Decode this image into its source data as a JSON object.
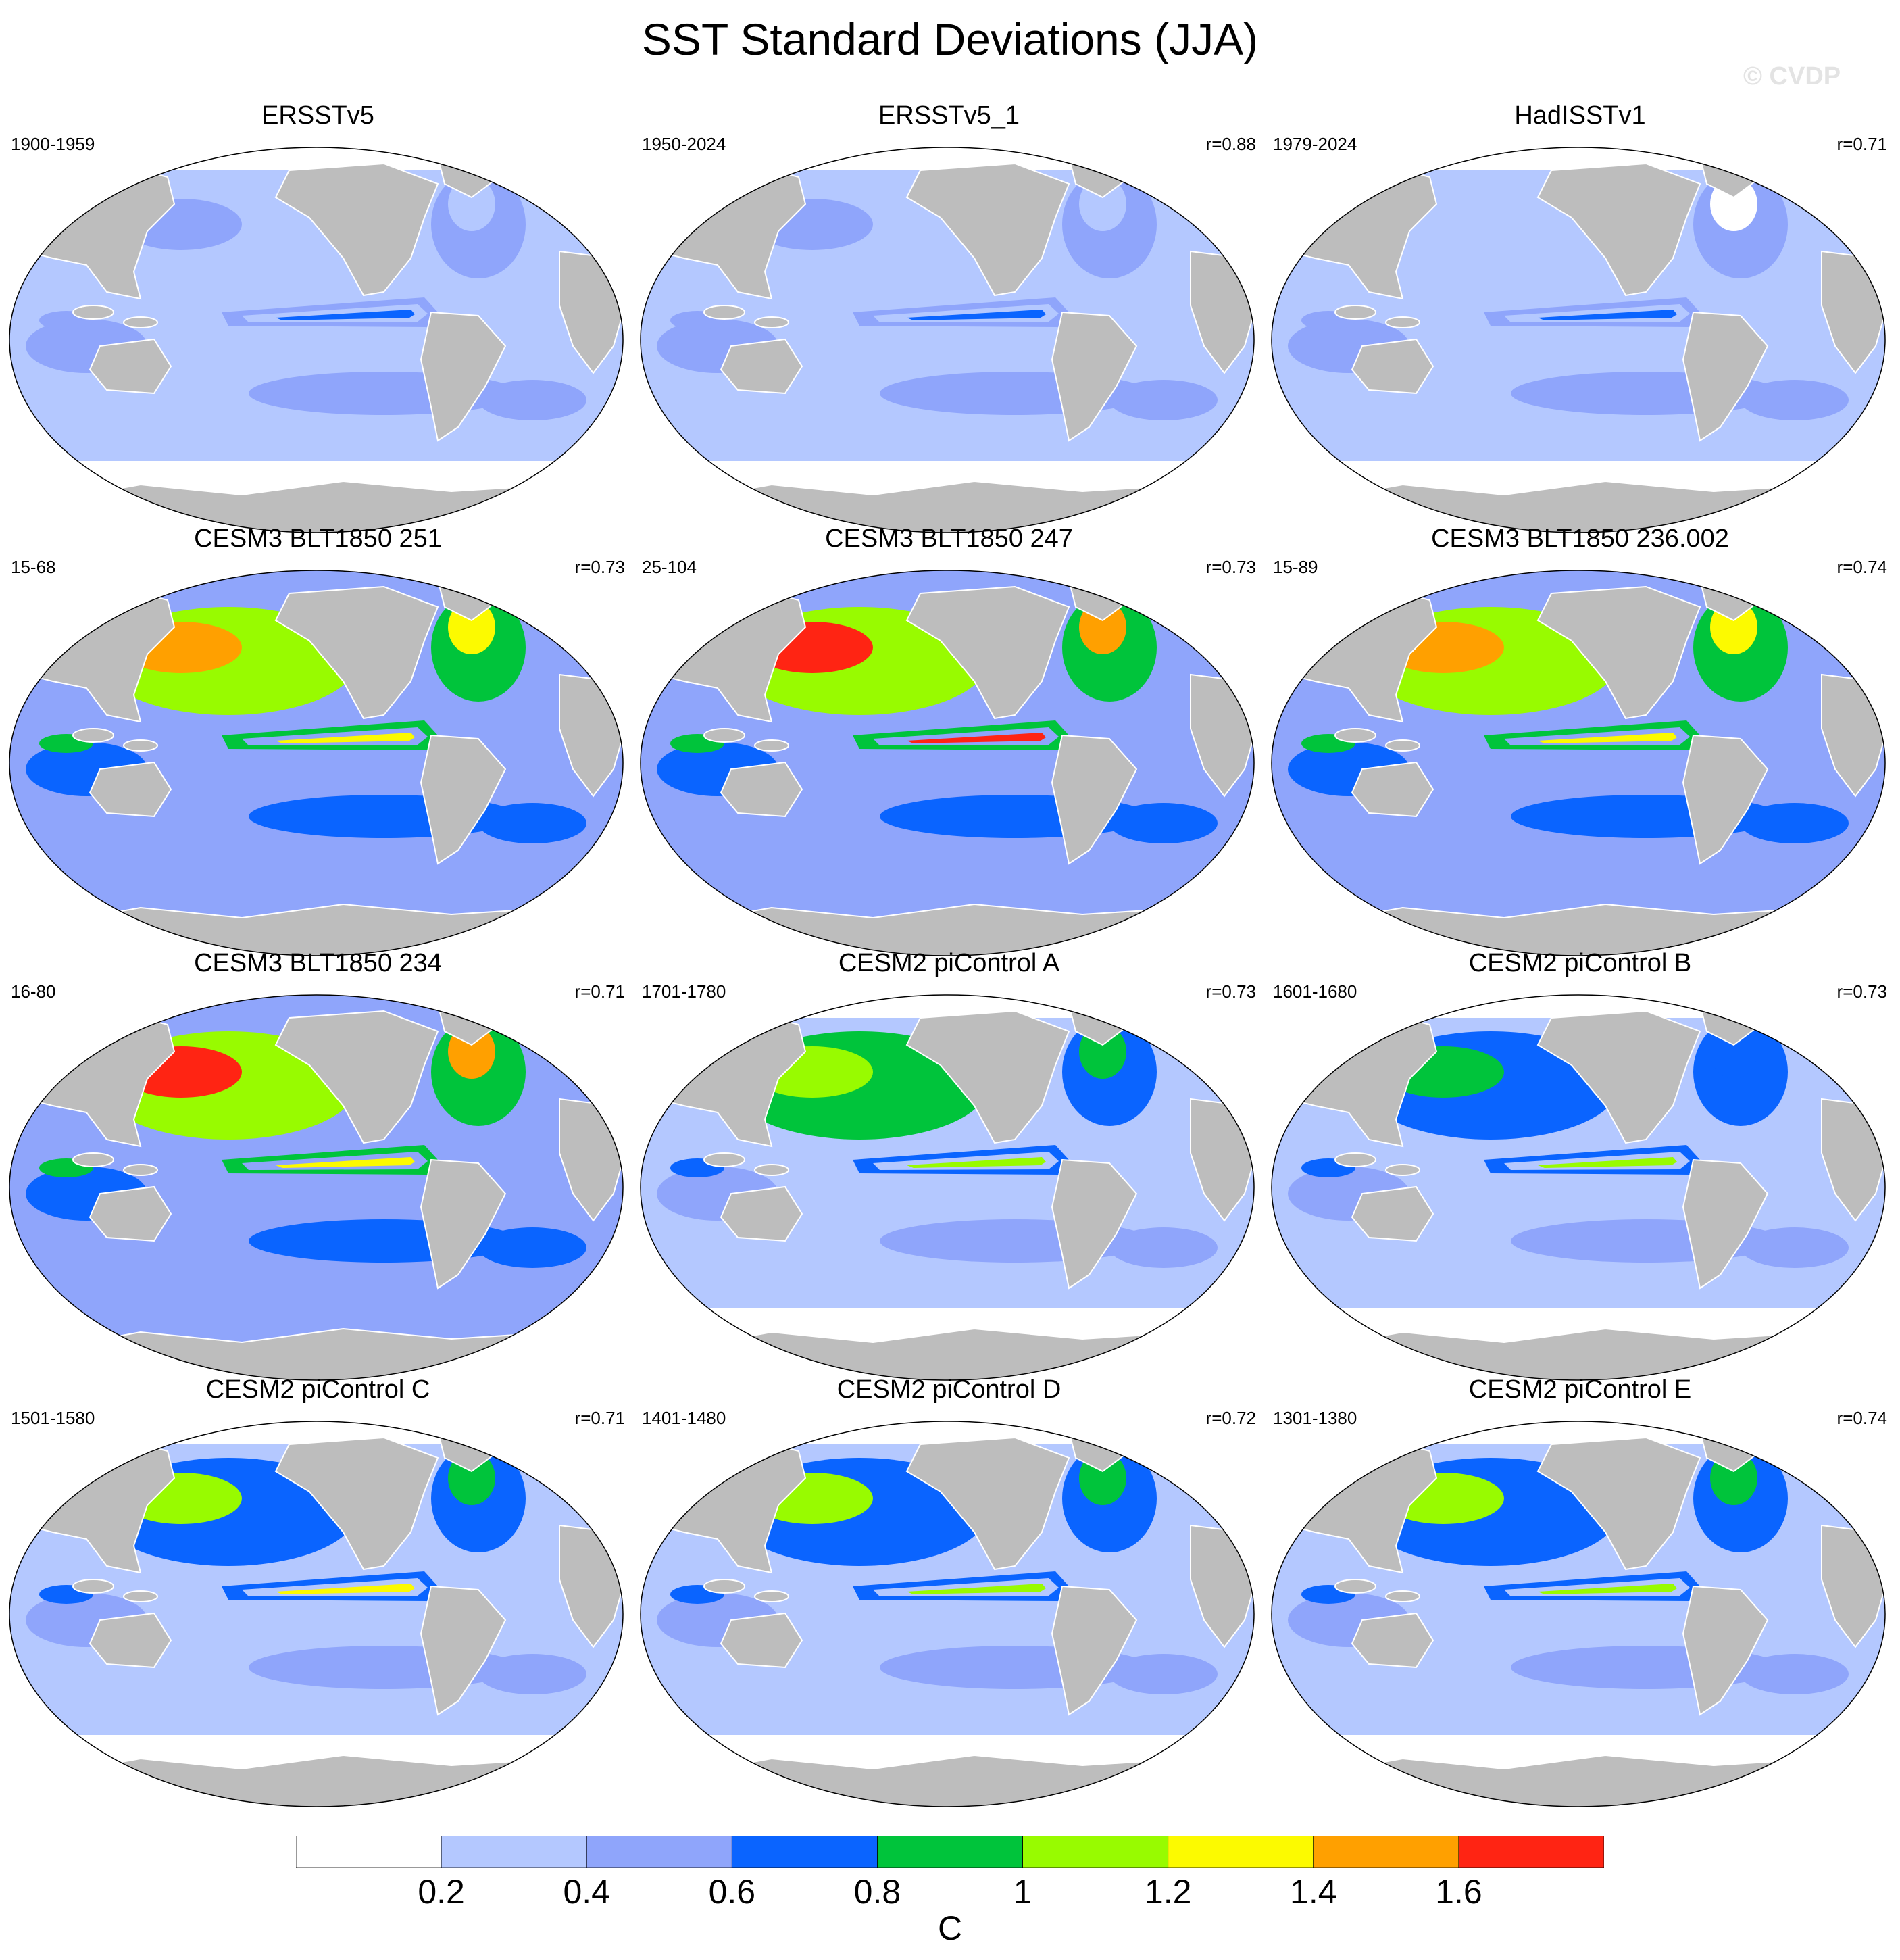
{
  "title": "SST Standard Deviations (JJA)",
  "watermark": "© CVDP",
  "colors": {
    "land": "#bdbdbd",
    "bins": [
      "#ffffff",
      "#b4c8ff",
      "#8fa5fb",
      "#0a64ff",
      "#00c43b",
      "#98fb00",
      "#fcfa00",
      "#ffa000",
      "#ff2413"
    ]
  },
  "panels": [
    {
      "title": "ERSSTv5",
      "period": "1900-1959",
      "corr": "",
      "pattern": [
        2,
        1,
        1,
        2,
        1,
        0,
        3,
        1,
        1
      ]
    },
    {
      "title": "ERSSTv5_1",
      "period": "1950-2024",
      "corr": "r=0.88",
      "pattern": [
        2,
        1,
        1,
        2,
        1,
        0,
        3,
        1,
        1
      ]
    },
    {
      "title": "HadISSTv1",
      "period": "1979-2024",
      "corr": "r=0.71",
      "pattern": [
        1,
        1,
        1,
        2,
        1,
        0,
        3,
        1,
        1
      ]
    },
    {
      "title": "CESM3 BLT1850 251",
      "period": "15-68",
      "corr": "r=0.73",
      "pattern": [
        7,
        5,
        2,
        4,
        2,
        2,
        6,
        2,
        2
      ]
    },
    {
      "title": "CESM3 BLT1850 247",
      "period": "25-104",
      "corr": "r=0.73",
      "pattern": [
        8,
        5,
        2,
        4,
        2,
        2,
        8,
        2,
        2
      ]
    },
    {
      "title": "CESM3 BLT1850 236.002",
      "period": "15-89",
      "corr": "r=0.74",
      "pattern": [
        7,
        5,
        2,
        4,
        2,
        2,
        6,
        2,
        2
      ]
    },
    {
      "title": "CESM3 BLT1850 234",
      "period": "16-80",
      "corr": "r=0.71",
      "pattern": [
        8,
        5,
        2,
        4,
        2,
        2,
        6,
        2,
        2
      ]
    },
    {
      "title": "CESM2 piControl A",
      "period": "1701-1780",
      "corr": "r=0.73",
      "pattern": [
        5,
        4,
        1,
        3,
        1,
        0,
        5,
        1,
        1
      ]
    },
    {
      "title": "CESM2 piControl B",
      "period": "1601-1680",
      "corr": "r=0.73",
      "pattern": [
        4,
        3,
        1,
        3,
        1,
        0,
        5,
        1,
        1
      ]
    },
    {
      "title": "CESM2 piControl C",
      "period": "1501-1580",
      "corr": "r=0.71",
      "pattern": [
        5,
        3,
        1,
        3,
        1,
        0,
        6,
        1,
        1
      ]
    },
    {
      "title": "CESM2 piControl D",
      "period": "1401-1480",
      "corr": "r=0.72",
      "pattern": [
        5,
        3,
        1,
        3,
        1,
        0,
        5,
        1,
        1
      ]
    },
    {
      "title": "CESM2 piControl E",
      "period": "1301-1380",
      "corr": "r=0.74",
      "pattern": [
        5,
        3,
        1,
        3,
        1,
        0,
        5,
        1,
        1
      ]
    }
  ],
  "colorbar": {
    "levels": [
      "0.2",
      "0.4",
      "0.6",
      "0.8",
      "1",
      "1.2",
      "1.4",
      "1.6"
    ],
    "units": "C"
  }
}
